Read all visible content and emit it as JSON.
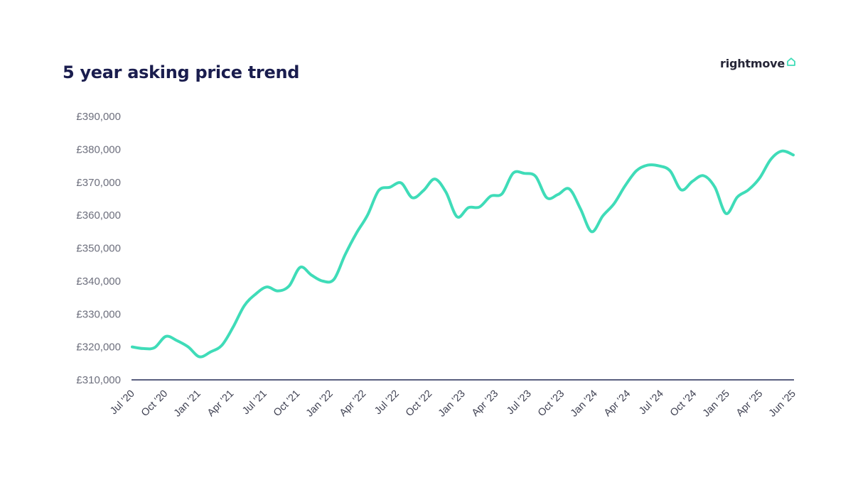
{
  "header": {
    "title": "5 year asking price trend",
    "brand": "rightmove",
    "brand_icon": "house-icon"
  },
  "colors": {
    "title": "#1a1d4e",
    "line": "#3fdcb8",
    "axis": "#242a55",
    "tick_text": "#6d6f7d"
  },
  "chart_data": {
    "type": "line",
    "title": "5 year asking price trend",
    "xlabel": "",
    "ylabel": "",
    "ylim": [
      310000,
      390000
    ],
    "y_ticks": [
      310000,
      320000,
      330000,
      340000,
      350000,
      360000,
      370000,
      380000,
      390000
    ],
    "y_tick_labels": [
      "£310,000",
      "£320,000",
      "£330,000",
      "£340,000",
      "£350,000",
      "£360,000",
      "£370,000",
      "£380,000",
      "£390,000"
    ],
    "x_tick_labels": [
      "Jul '20",
      "Oct '20",
      "Jan '21",
      "Apr '21",
      "Jul '21",
      "Oct '21",
      "Jan '22",
      "Apr '22",
      "Jul '22",
      "Oct '22",
      "Jan '23",
      "Apr '23",
      "Jul '23",
      "Oct '23",
      "Jan '24",
      "Apr '24",
      "Jul '24",
      "Oct '24",
      "Jan '25",
      "Apr '25",
      "Jun '25"
    ],
    "grid": false,
    "legend": "none",
    "series": [
      {
        "x": [
          "2020-07",
          "2020-08",
          "2020-09",
          "2020-10",
          "2020-11",
          "2020-12",
          "2021-01",
          "2021-02",
          "2021-03",
          "2021-04",
          "2021-05",
          "2021-06",
          "2021-07",
          "2021-08",
          "2021-09",
          "2021-10",
          "2021-11",
          "2021-12",
          "2022-01",
          "2022-02",
          "2022-03",
          "2022-04",
          "2022-05",
          "2022-06",
          "2022-07",
          "2022-08",
          "2022-09",
          "2022-10",
          "2022-11",
          "2022-12",
          "2023-01",
          "2023-02",
          "2023-03",
          "2023-04",
          "2023-05",
          "2023-06",
          "2023-07",
          "2023-08",
          "2023-09",
          "2023-10",
          "2023-11",
          "2023-12",
          "2024-01",
          "2024-02",
          "2024-03",
          "2024-04",
          "2024-05",
          "2024-06",
          "2024-07",
          "2024-08",
          "2024-09",
          "2024-10",
          "2024-11",
          "2024-12",
          "2025-01",
          "2025-02",
          "2025-03",
          "2025-04",
          "2025-05",
          "2025-06"
        ],
        "values": [
          320000,
          319500,
          319800,
          323200,
          321900,
          320000,
          317000,
          318500,
          320500,
          326000,
          332500,
          336000,
          338200,
          337000,
          338500,
          344200,
          341800,
          340000,
          340500,
          348000,
          354500,
          360000,
          367500,
          368500,
          369800,
          365300,
          367500,
          371000,
          367000,
          359500,
          362300,
          362500,
          365800,
          366500,
          372800,
          372700,
          371800,
          365300,
          366300,
          368000,
          362000,
          355000,
          359800,
          363500,
          369000,
          373500,
          375200,
          375000,
          373500,
          367700,
          370300,
          372000,
          368500,
          360500,
          365500,
          367700,
          371300,
          377000,
          379500,
          378300
        ]
      }
    ]
  }
}
